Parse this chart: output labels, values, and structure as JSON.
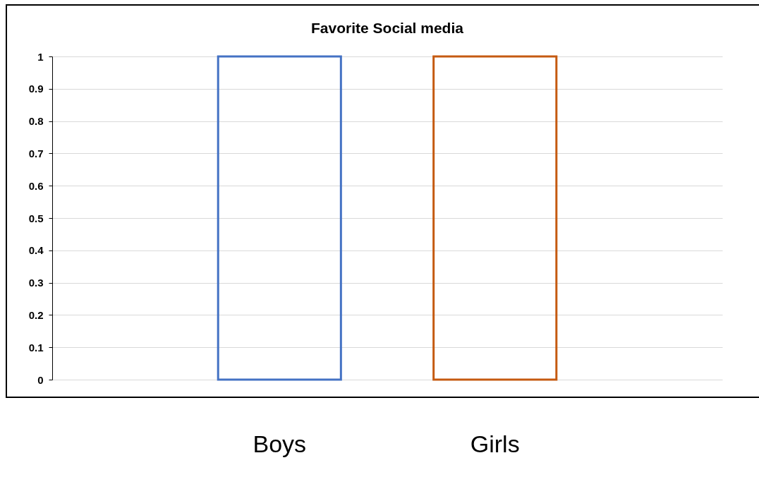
{
  "chart_data": {
    "type": "bar",
    "title": "Favorite Social media",
    "categories": [
      "Boys",
      "Girls"
    ],
    "values": [
      1,
      1
    ],
    "colors": [
      "#4472c4",
      "#c55a11"
    ],
    "ylim": [
      0,
      1
    ],
    "yticks": [
      0,
      0.1,
      0.2,
      0.3,
      0.4,
      0.5,
      0.6,
      0.7,
      0.8,
      0.9,
      1
    ],
    "grid": "y"
  }
}
